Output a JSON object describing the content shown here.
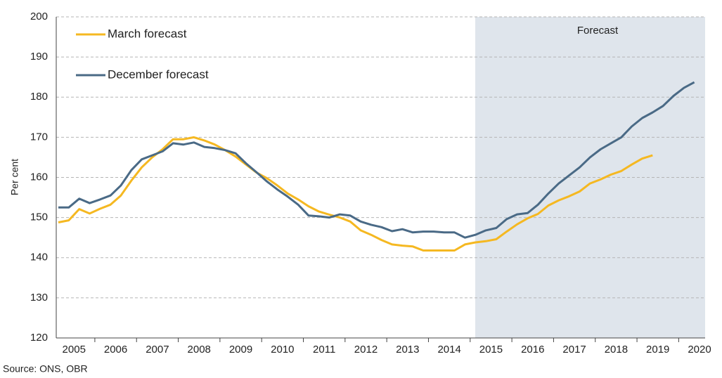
{
  "chart_data": {
    "type": "line",
    "y_label": "Per cent",
    "source": "Source: ONS, OBR",
    "shaded_label": "Forecast",
    "categories": [
      null,
      "2005",
      null,
      null,
      null,
      "2006",
      null,
      null,
      null,
      "2007",
      null,
      null,
      null,
      "2008",
      null,
      null,
      null,
      "2009",
      null,
      null,
      null,
      "2010",
      null,
      null,
      null,
      "2011",
      null,
      null,
      null,
      "2012",
      null,
      null,
      null,
      "2013",
      null,
      null,
      null,
      "2014",
      null,
      null,
      null,
      "2015",
      null,
      null,
      null,
      "2016",
      null,
      null,
      null,
      "2017",
      null,
      null,
      null,
      "2018",
      null,
      null,
      null,
      "2019",
      null,
      null,
      null,
      "2020"
    ],
    "series": [
      {
        "name": "March forecast",
        "color": "#f5b821",
        "values": [
          148.8,
          149.3,
          152.1,
          151,
          152.2,
          153.2,
          155.5,
          159.2,
          162.5,
          165,
          167,
          169.5,
          169.5,
          170,
          169.2,
          168.2,
          166.8,
          165.2,
          163.2,
          161.2,
          159.8,
          158,
          156,
          154.5,
          152.8,
          151.5,
          150.7,
          150,
          149,
          146.8,
          145.7,
          144.4,
          143.3,
          143,
          142.8,
          141.8,
          141.8,
          141.8,
          141.8,
          143.3,
          143.8,
          144.1,
          144.6,
          146.5,
          148.3,
          149.8,
          150.9,
          153,
          154.3,
          155.3,
          156.5,
          158.5,
          159.5,
          160.7,
          161.6,
          163.2,
          164.7,
          165.5,
          null,
          null,
          null,
          null
        ]
      },
      {
        "name": "December forecast",
        "color": "#4a6a86",
        "values": [
          152.5,
          152.5,
          154.7,
          153.6,
          154.5,
          155.5,
          158,
          161.8,
          164.5,
          165.5,
          166.5,
          168.5,
          168.2,
          168.7,
          167.6,
          167.3,
          166.8,
          166,
          163.5,
          161.3,
          159,
          157,
          155.2,
          153.2,
          150.5,
          150.3,
          150,
          150.8,
          150.5,
          149,
          148.2,
          147.6,
          146.6,
          147.1,
          146.3,
          146.5,
          146.5,
          146.3,
          146.3,
          145,
          145.7,
          146.8,
          147.4,
          149.6,
          150.8,
          151.1,
          153.2,
          156,
          158.5,
          160.5,
          162.5,
          165,
          167,
          168.5,
          170,
          172.7,
          174.8,
          176.2,
          177.8,
          180.3,
          182.3,
          183.7
        ]
      }
    ],
    "ylim": [
      120,
      200
    ],
    "yticks": [
      120,
      130,
      140,
      150,
      160,
      170,
      180,
      190,
      200
    ],
    "grid": true
  }
}
